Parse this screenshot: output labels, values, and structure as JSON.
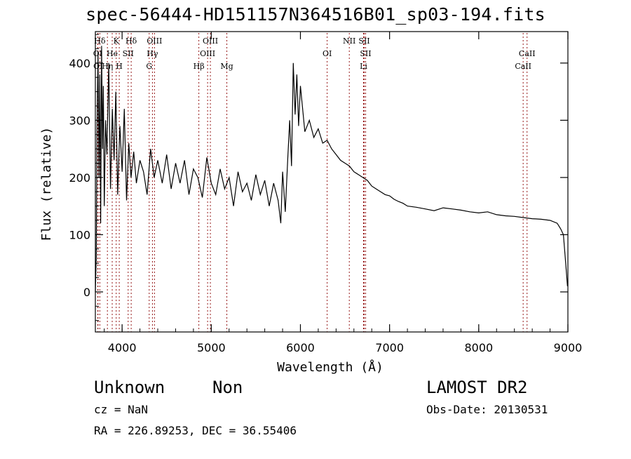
{
  "figure": {
    "title": "spec-56444-HD151157N364516B01_sp03-194.fits",
    "footer": {
      "object_class": "Unknown",
      "subclass": "Non",
      "survey": "LAMOST DR2",
      "cz": "cz = NaN",
      "obs_date": "Obs-Date: 20130531",
      "coords": "RA = 226.89253, DEC =  36.55406"
    }
  },
  "chart_data": {
    "type": "line",
    "title": "spec-56444-HD151157N364516B01_sp03-194.fits",
    "xlabel": "Wavelength (Å)",
    "ylabel": "Flux (relative)",
    "xlim": [
      3700,
      9000
    ],
    "ylim": [
      -70,
      455
    ],
    "xticks": [
      4000,
      5000,
      6000,
      7000,
      8000,
      9000
    ],
    "yticks": [
      0,
      100,
      200,
      300,
      400
    ],
    "grid": false,
    "line_color": "#000000",
    "marker_color": "#8b0000",
    "series": [
      {
        "x": [
          3700,
          3710,
          3720,
          3730,
          3740,
          3750,
          3760,
          3770,
          3780,
          3790,
          3800,
          3815,
          3830,
          3850,
          3870,
          3890,
          3910,
          3930,
          3950,
          3975,
          4000,
          4025,
          4050,
          4075,
          4100,
          4130,
          4160,
          4200,
          4240,
          4280,
          4320,
          4360,
          4400,
          4450,
          4500,
          4550,
          4600,
          4650,
          4700,
          4750,
          4800,
          4850,
          4900,
          4950,
          5000,
          5050,
          5100,
          5150,
          5200,
          5250,
          5300,
          5350,
          5400,
          5450,
          5500,
          5550,
          5600,
          5650,
          5700,
          5750,
          5780,
          5800,
          5830,
          5860,
          5880,
          5900,
          5920,
          5940,
          5960,
          5980,
          6000,
          6050,
          6100,
          6150,
          6200,
          6250,
          6300,
          6350,
          6400,
          6450,
          6500,
          6550,
          6600,
          6650,
          6700,
          6750,
          6800,
          6850,
          6900,
          6950,
          7000,
          7050,
          7100,
          7150,
          7200,
          7300,
          7400,
          7500,
          7600,
          7700,
          7800,
          7900,
          8000,
          8100,
          8200,
          8300,
          8400,
          8500,
          8600,
          8700,
          8800,
          8880,
          8920,
          8950,
          8980,
          8995
        ],
        "y": [
          0,
          60,
          300,
          420,
          200,
          380,
          120,
          430,
          250,
          360,
          150,
          300,
          240,
          400,
          180,
          320,
          230,
          350,
          170,
          290,
          210,
          320,
          160,
          260,
          200,
          245,
          190,
          230,
          210,
          170,
          250,
          200,
          230,
          190,
          240,
          180,
          225,
          190,
          230,
          170,
          215,
          200,
          165,
          235,
          190,
          170,
          215,
          180,
          200,
          150,
          210,
          175,
          190,
          160,
          205,
          170,
          195,
          150,
          190,
          160,
          120,
          210,
          140,
          240,
          300,
          220,
          400,
          310,
          380,
          290,
          360,
          280,
          300,
          270,
          285,
          260,
          265,
          250,
          240,
          230,
          225,
          220,
          210,
          205,
          200,
          195,
          185,
          180,
          175,
          170,
          168,
          162,
          158,
          155,
          150,
          148,
          145,
          142,
          147,
          145,
          143,
          140,
          138,
          140,
          135,
          133,
          132,
          130,
          128,
          127,
          125,
          120,
          110,
          100,
          40,
          10
        ]
      }
    ],
    "line_markers": [
      {
        "label": "Hδ",
        "x": 3750,
        "row": 0
      },
      {
        "label": "K",
        "x": 3934,
        "row": 0
      },
      {
        "label": "Hδ",
        "x": 4102,
        "row": 0
      },
      {
        "label": "OIII",
        "x": 4363,
        "row": 0
      },
      {
        "label": "OIII",
        "x": 4990,
        "row": 0
      },
      {
        "label": "NII",
        "x": 6548,
        "row": 0
      },
      {
        "label": "SII",
        "x": 6716,
        "row": 0
      },
      {
        "label": "OI",
        "x": 3727,
        "row": 1
      },
      {
        "label": "He",
        "x": 3889,
        "row": 1
      },
      {
        "label": "SII",
        "x": 4068,
        "row": 1
      },
      {
        "label": "Hγ",
        "x": 4340,
        "row": 1
      },
      {
        "label": "OIII",
        "x": 4959,
        "row": 1
      },
      {
        "label": "OI",
        "x": 6300,
        "row": 1
      },
      {
        "label": "SII",
        "x": 6731,
        "row": 1
      },
      {
        "label": "CaII",
        "x": 8542,
        "row": 1
      },
      {
        "label": "OI",
        "x": 3730,
        "row": 2
      },
      {
        "label": "Hη",
        "x": 3835,
        "row": 2
      },
      {
        "label": "H",
        "x": 3968,
        "row": 2
      },
      {
        "label": "G",
        "x": 4304,
        "row": 2
      },
      {
        "label": "Hβ",
        "x": 4861,
        "row": 2
      },
      {
        "label": "Mg",
        "x": 5175,
        "row": 2
      },
      {
        "label": "Li",
        "x": 6708,
        "row": 2
      },
      {
        "label": "CaII",
        "x": 8498,
        "row": 2
      }
    ]
  }
}
